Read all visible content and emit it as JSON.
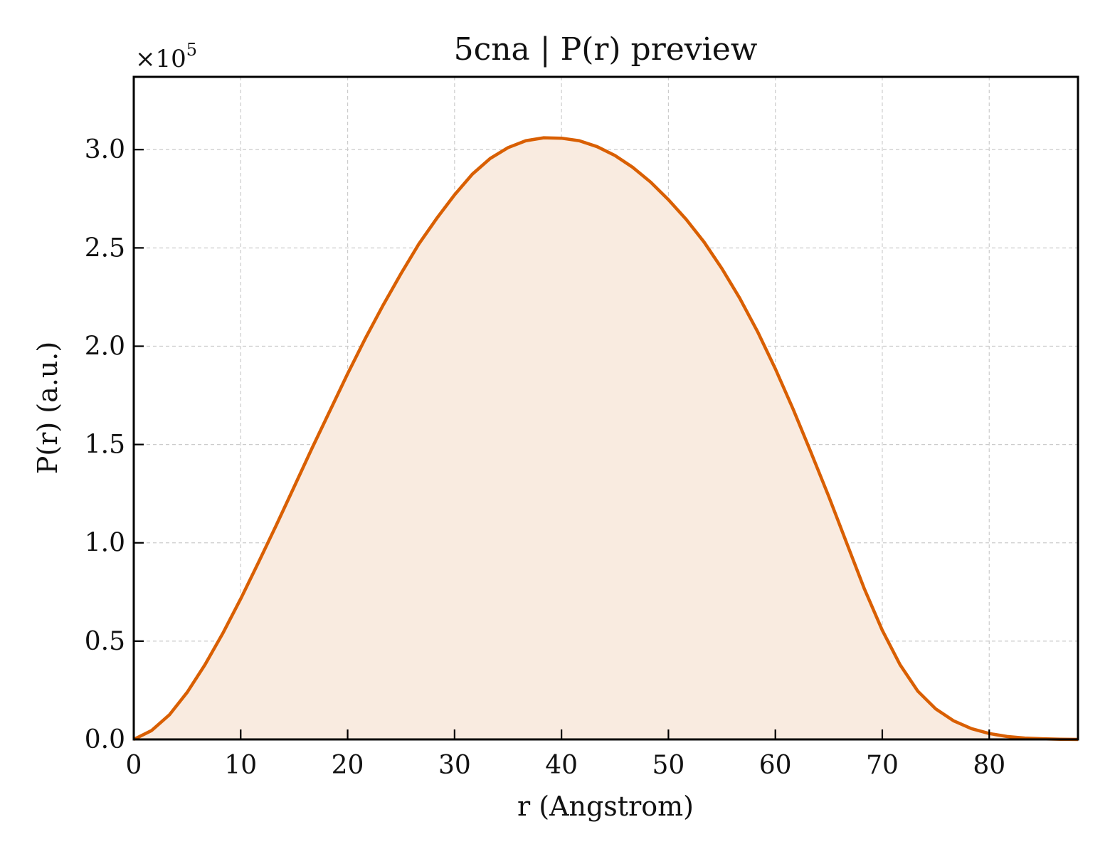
{
  "chart_data": {
    "type": "area",
    "title": "5cna | P(r) preview",
    "xlabel": "r (Angstrom)",
    "ylabel": "P(r) (a.u.)",
    "y_multiplier": "×10",
    "y_multiplier_exponent": "5",
    "xlim": [
      0,
      88.3
    ],
    "ylim": [
      0,
      3.37
    ],
    "xticks": [
      0,
      10,
      20,
      30,
      40,
      50,
      60,
      70,
      80
    ],
    "xtick_labels": [
      "0",
      "10",
      "20",
      "30",
      "40",
      "50",
      "60",
      "70",
      "80"
    ],
    "yticks": [
      0,
      0.5,
      1.0,
      1.5,
      2.0,
      2.5,
      3.0
    ],
    "ytick_labels": [
      "0.0",
      "0.5",
      "1.0",
      "1.5",
      "2.0",
      "2.5",
      "3.0"
    ],
    "grid": true,
    "colors": {
      "line": "#d95f02",
      "fill": "#f9ebe0"
    },
    "series": [
      {
        "x": [
          0,
          1.66,
          3.33,
          5.0,
          6.66,
          8.33,
          10.0,
          11.66,
          13.33,
          15.0,
          16.66,
          18.33,
          20.0,
          21.66,
          23.33,
          25.0,
          26.66,
          28.33,
          30.0,
          31.66,
          33.33,
          35.0,
          36.66,
          38.33,
          40.0,
          41.66,
          43.33,
          45.0,
          46.66,
          48.33,
          50.0,
          51.66,
          53.33,
          55.0,
          56.66,
          58.33,
          60.0,
          61.66,
          63.33,
          65.0,
          66.66,
          68.33,
          70.0,
          71.66,
          73.33,
          75.0,
          76.66,
          78.33,
          80.0,
          81.66,
          83.33,
          85.0,
          86.66,
          88.3
        ],
        "y": [
          0.0,
          0.045,
          0.125,
          0.24,
          0.38,
          0.54,
          0.715,
          0.9,
          1.09,
          1.285,
          1.48,
          1.67,
          1.86,
          2.04,
          2.21,
          2.37,
          2.52,
          2.65,
          2.77,
          2.875,
          2.955,
          3.01,
          3.045,
          3.06,
          3.058,
          3.045,
          3.015,
          2.97,
          2.91,
          2.835,
          2.745,
          2.645,
          2.53,
          2.395,
          2.245,
          2.075,
          1.885,
          1.68,
          1.46,
          1.235,
          1.0,
          0.765,
          0.555,
          0.38,
          0.245,
          0.155,
          0.095,
          0.055,
          0.03,
          0.015,
          0.007,
          0.003,
          0.001,
          0.0
        ]
      }
    ]
  }
}
